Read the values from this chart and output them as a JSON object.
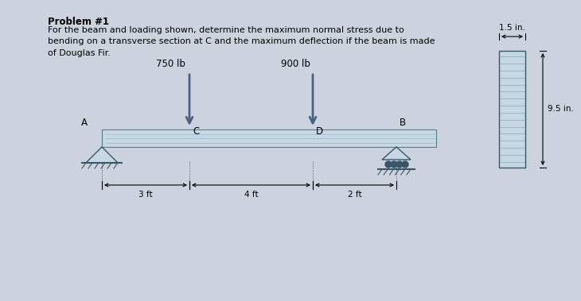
{
  "title": "Problem #1",
  "description": "For the beam and loading shown, determine the maximum normal stress due to\nbending on a transverse section at C and the maximum deflection if the beam is made\nof Douglas Fir.",
  "bg_color": "#cdd3de",
  "text_color": "#000000",
  "beam_color": "#c8d8e4",
  "load1_label": "750 lb",
  "load2_label": "900 lb",
  "dim1_label": "3 ft",
  "dim2_label": "4 ft",
  "dim3_label": "2 ft",
  "cross_section_width_label": "1.5 in.",
  "cross_section_height_label": "9.5 in.",
  "title_fontsize": 8.5,
  "body_fontsize": 8.0,
  "label_fontsize": 8.5,
  "dim_fontsize": 7.5
}
